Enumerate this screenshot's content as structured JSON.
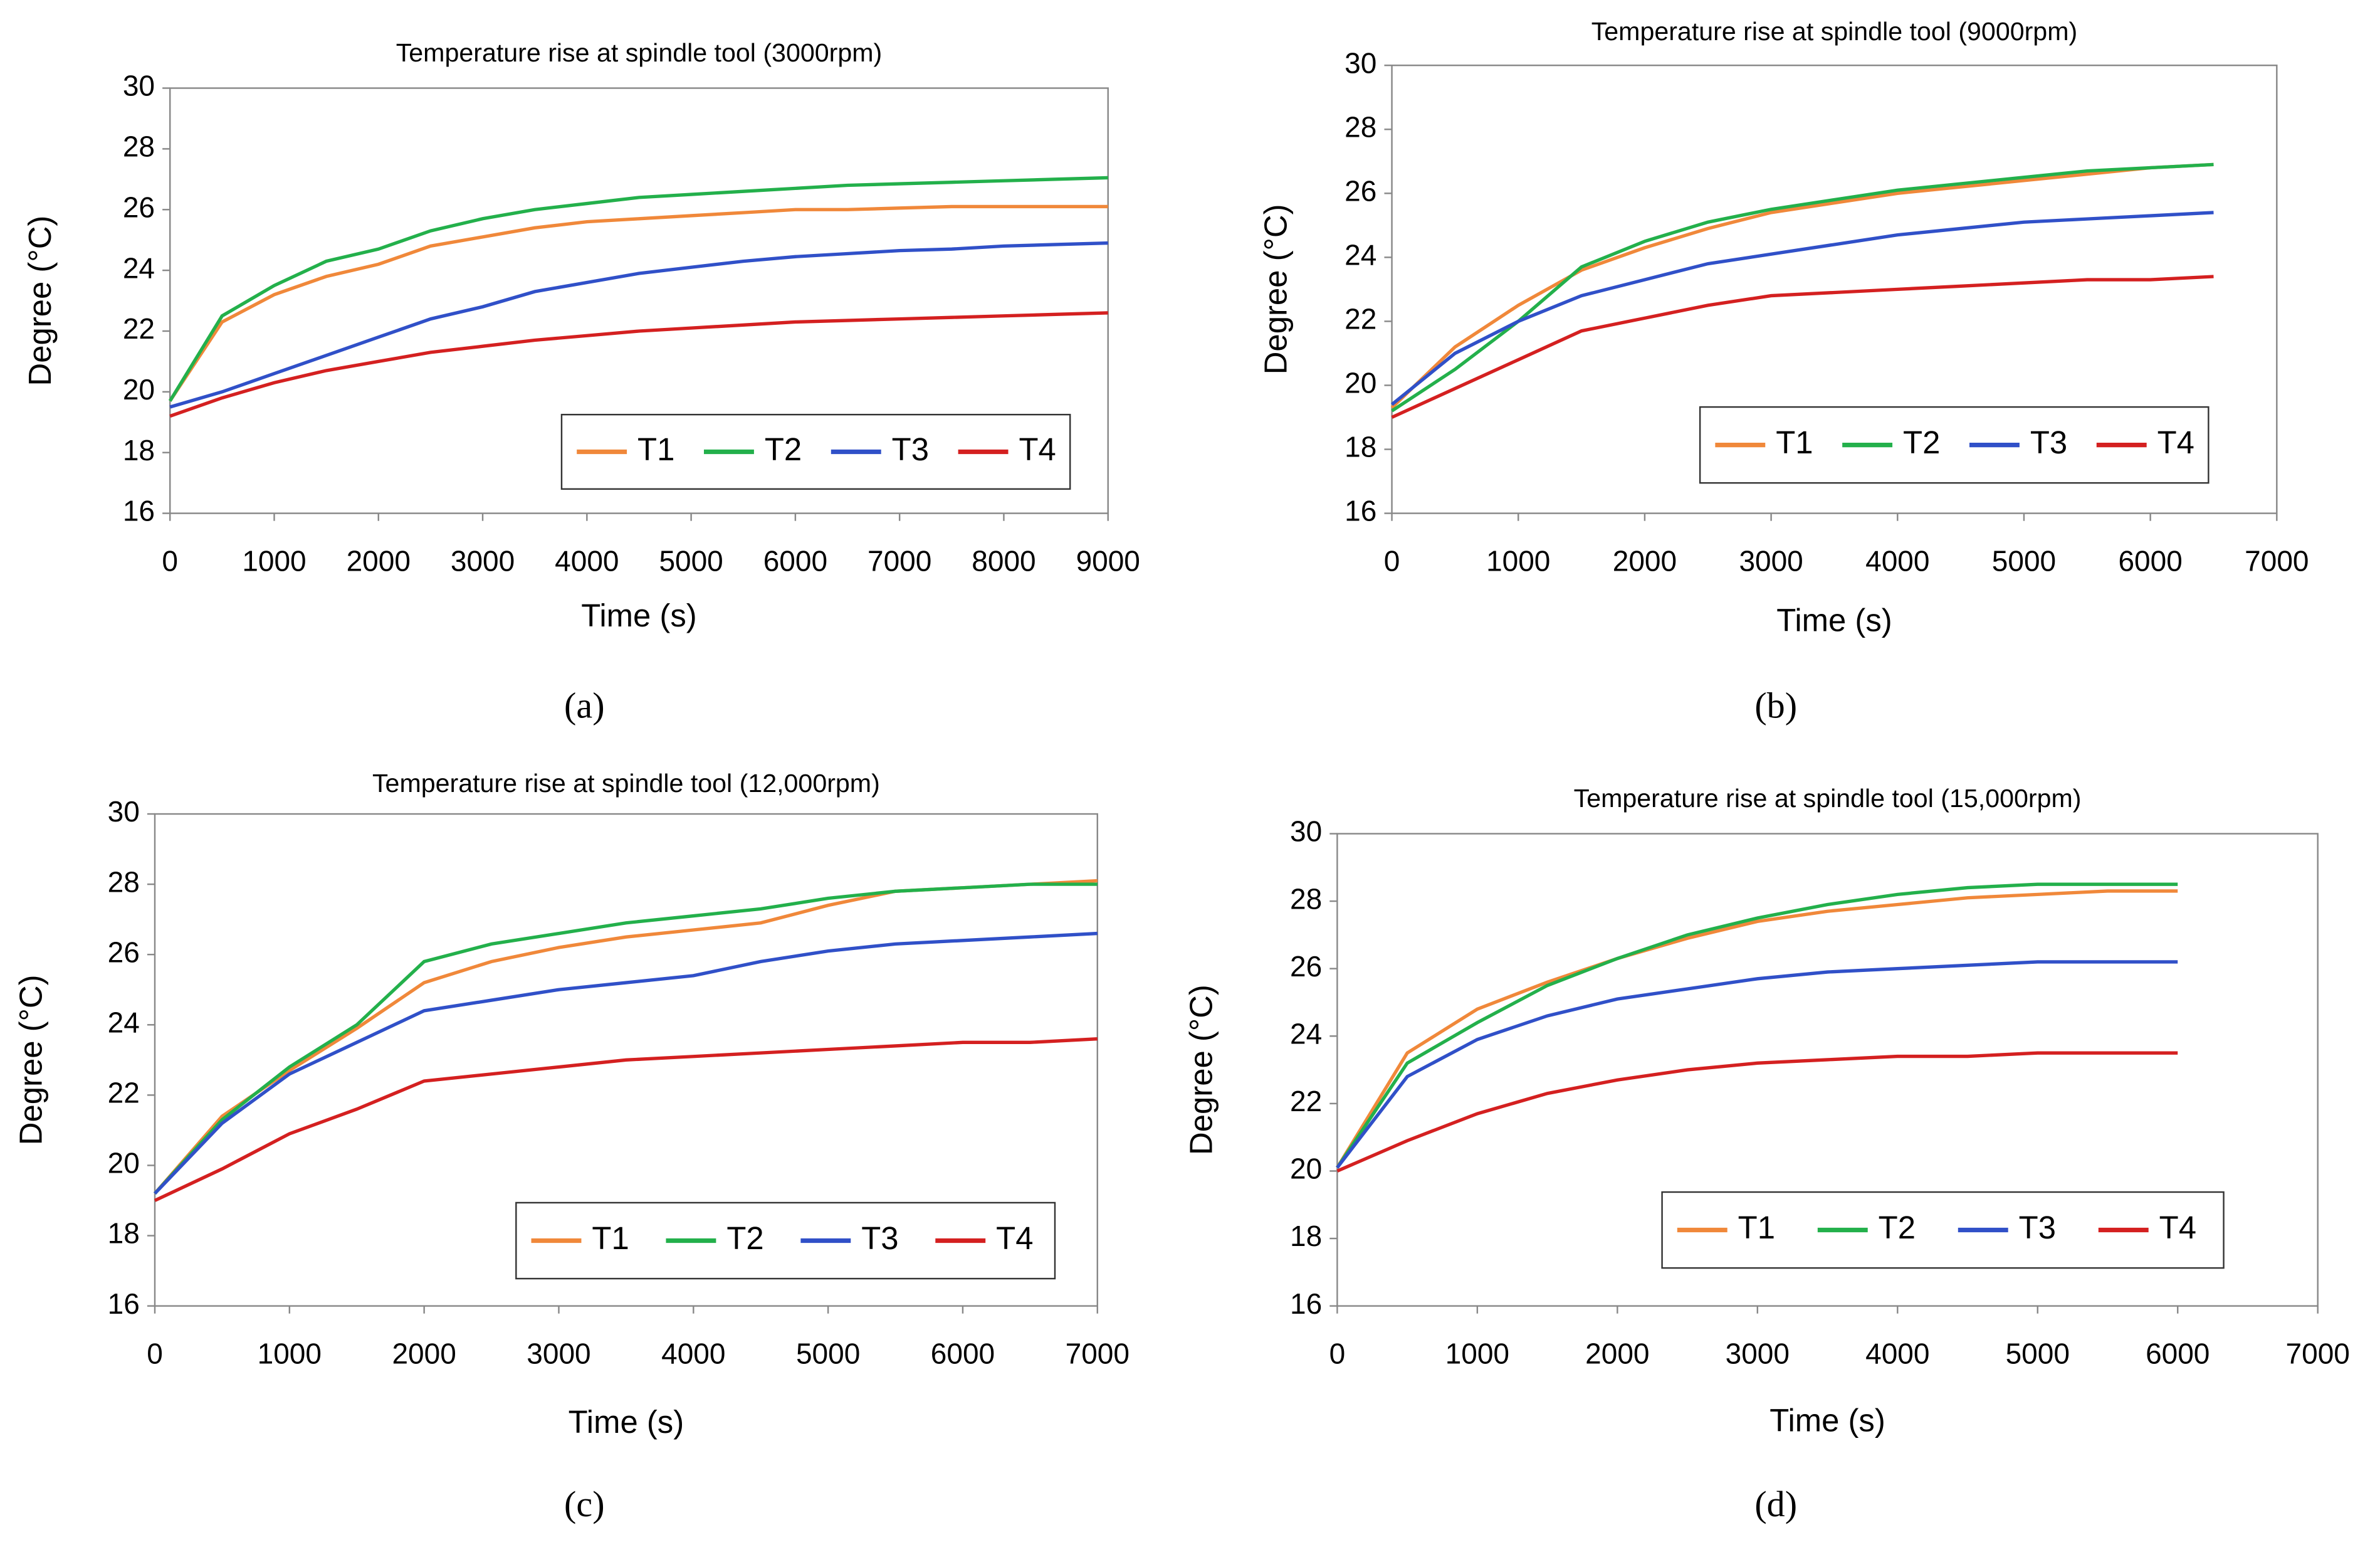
{
  "chart_data": [
    {
      "type": "line",
      "title": "Temperature rise at  spindle tool (3000rpm)",
      "xlabel": "Time (s)",
      "ylabel": "Degree (°C)",
      "caption": "(a)",
      "legend": "lower right",
      "x": [
        0,
        500,
        1000,
        1500,
        2000,
        2500,
        3000,
        3500,
        4000,
        4500,
        5000,
        5500,
        6000,
        6500,
        7000,
        7500,
        8000,
        8500,
        9000
      ],
      "series": [
        {
          "name": "T1",
          "color": "#f0883a",
          "values": [
            19.7,
            22.3,
            23.2,
            23.8,
            24.2,
            24.8,
            25.1,
            25.4,
            25.6,
            25.7,
            25.8,
            25.9,
            26.0,
            26.0,
            26.05,
            26.1,
            26.1,
            26.1,
            26.1
          ]
        },
        {
          "name": "T2",
          "color": "#23b04b",
          "values": [
            19.7,
            22.5,
            23.5,
            24.3,
            24.7,
            25.3,
            25.7,
            26.0,
            26.2,
            26.4,
            26.5,
            26.6,
            26.7,
            26.8,
            26.85,
            26.9,
            26.95,
            27.0,
            27.05
          ]
        },
        {
          "name": "T3",
          "color": "#3050c8",
          "values": [
            19.5,
            20.0,
            20.6,
            21.2,
            21.8,
            22.4,
            22.8,
            23.3,
            23.6,
            23.9,
            24.1,
            24.3,
            24.45,
            24.55,
            24.65,
            24.7,
            24.8,
            24.85,
            24.9
          ]
        },
        {
          "name": "T4",
          "color": "#d42020",
          "values": [
            19.2,
            19.8,
            20.3,
            20.7,
            21.0,
            21.3,
            21.5,
            21.7,
            21.85,
            22.0,
            22.1,
            22.2,
            22.3,
            22.35,
            22.4,
            22.45,
            22.5,
            22.55,
            22.6
          ]
        }
      ],
      "xlim": [
        0,
        9000
      ],
      "xticks": [
        0,
        1000,
        2000,
        3000,
        4000,
        5000,
        6000,
        7000,
        8000,
        9000
      ],
      "ylim": [
        16,
        30
      ],
      "yticks": [
        16,
        18,
        20,
        22,
        24,
        26,
        28,
        30
      ]
    },
    {
      "type": "line",
      "title": "Temperature rise at  spindle tool (9000rpm)",
      "xlabel": "Time (s)",
      "ylabel": "Degree (°C)",
      "caption": "(b)",
      "legend": "lower right",
      "x": [
        0,
        500,
        1000,
        1500,
        2000,
        2500,
        3000,
        3500,
        4000,
        4500,
        5000,
        5500,
        6000,
        6500
      ],
      "series": [
        {
          "name": "T1",
          "color": "#f0883a",
          "values": [
            19.3,
            21.2,
            22.5,
            23.6,
            24.3,
            24.9,
            25.4,
            25.7,
            26.0,
            26.2,
            26.4,
            26.6,
            26.8,
            26.9
          ]
        },
        {
          "name": "T2",
          "color": "#23b04b",
          "values": [
            19.2,
            20.5,
            22.0,
            23.7,
            24.5,
            25.1,
            25.5,
            25.8,
            26.1,
            26.3,
            26.5,
            26.7,
            26.8,
            26.9
          ]
        },
        {
          "name": "T3",
          "color": "#3050c8",
          "values": [
            19.4,
            21.0,
            22.0,
            22.8,
            23.3,
            23.8,
            24.1,
            24.4,
            24.7,
            24.9,
            25.1,
            25.2,
            25.3,
            25.4
          ]
        },
        {
          "name": "T4",
          "color": "#d42020",
          "values": [
            19.0,
            19.9,
            20.8,
            21.7,
            22.1,
            22.5,
            22.8,
            22.9,
            23.0,
            23.1,
            23.2,
            23.3,
            23.3,
            23.4
          ]
        }
      ],
      "xlim": [
        0,
        7000
      ],
      "xticks": [
        0,
        1000,
        2000,
        3000,
        4000,
        5000,
        6000,
        7000
      ],
      "ylim": [
        16,
        30
      ],
      "yticks": [
        16,
        18,
        20,
        22,
        24,
        26,
        28,
        30
      ]
    },
    {
      "type": "line",
      "title": "Temperature rise at  spindle tool (12,000rpm)",
      "xlabel": "Time (s)",
      "ylabel": "Degree (°C)",
      "caption": "(c)",
      "legend": "lower right",
      "x": [
        0,
        500,
        1000,
        1500,
        2000,
        2500,
        3000,
        3500,
        4000,
        4500,
        5000,
        5500,
        6000,
        6500,
        7000
      ],
      "series": [
        {
          "name": "T1",
          "color": "#f0883a",
          "values": [
            19.2,
            21.4,
            22.7,
            23.9,
            25.2,
            25.8,
            26.2,
            26.5,
            26.7,
            26.9,
            27.4,
            27.8,
            27.9,
            28.0,
            28.1
          ]
        },
        {
          "name": "T2",
          "color": "#23b04b",
          "values": [
            19.2,
            21.3,
            22.8,
            24.0,
            25.8,
            26.3,
            26.6,
            26.9,
            27.1,
            27.3,
            27.6,
            27.8,
            27.9,
            28.0,
            28.0
          ]
        },
        {
          "name": "T3",
          "color": "#3050c8",
          "values": [
            19.2,
            21.2,
            22.6,
            23.5,
            24.4,
            24.7,
            25.0,
            25.2,
            25.4,
            25.8,
            26.1,
            26.3,
            26.4,
            26.5,
            26.6
          ]
        },
        {
          "name": "T4",
          "color": "#d42020",
          "values": [
            19.0,
            19.9,
            20.9,
            21.6,
            22.4,
            22.6,
            22.8,
            23.0,
            23.1,
            23.2,
            23.3,
            23.4,
            23.5,
            23.5,
            23.6
          ]
        }
      ],
      "xlim": [
        0,
        7000
      ],
      "xticks": [
        0,
        1000,
        2000,
        3000,
        4000,
        5000,
        6000,
        7000
      ],
      "ylim": [
        16,
        30
      ],
      "yticks": [
        16,
        18,
        20,
        22,
        24,
        26,
        28,
        30
      ]
    },
    {
      "type": "line",
      "title": "Temperature rise at  spindle tool (15,000rpm)",
      "xlabel": "Time (s)",
      "ylabel": "Degree (°C)",
      "caption": "(d)",
      "legend": "lower right",
      "x": [
        0,
        500,
        1000,
        1500,
        2000,
        2500,
        3000,
        3500,
        4000,
        4500,
        5000,
        5500,
        6000
      ],
      "series": [
        {
          "name": "T1",
          "color": "#f0883a",
          "values": [
            20.1,
            23.5,
            24.8,
            25.6,
            26.3,
            26.9,
            27.4,
            27.7,
            27.9,
            28.1,
            28.2,
            28.3,
            28.3
          ]
        },
        {
          "name": "T2",
          "color": "#23b04b",
          "values": [
            20.1,
            23.2,
            24.4,
            25.5,
            26.3,
            27.0,
            27.5,
            27.9,
            28.2,
            28.4,
            28.5,
            28.5,
            28.5
          ]
        },
        {
          "name": "T3",
          "color": "#3050c8",
          "values": [
            20.1,
            22.8,
            23.9,
            24.6,
            25.1,
            25.4,
            25.7,
            25.9,
            26.0,
            26.1,
            26.2,
            26.2,
            26.2
          ]
        },
        {
          "name": "T4",
          "color": "#d42020",
          "values": [
            20.0,
            20.9,
            21.7,
            22.3,
            22.7,
            23.0,
            23.2,
            23.3,
            23.4,
            23.4,
            23.5,
            23.5,
            23.5
          ]
        }
      ],
      "xlim": [
        0,
        7000
      ],
      "xticks": [
        0,
        1000,
        2000,
        3000,
        4000,
        5000,
        6000,
        7000
      ],
      "ylim": [
        16,
        30
      ],
      "yticks": [
        16,
        18,
        20,
        22,
        24,
        26,
        28,
        30
      ]
    }
  ]
}
